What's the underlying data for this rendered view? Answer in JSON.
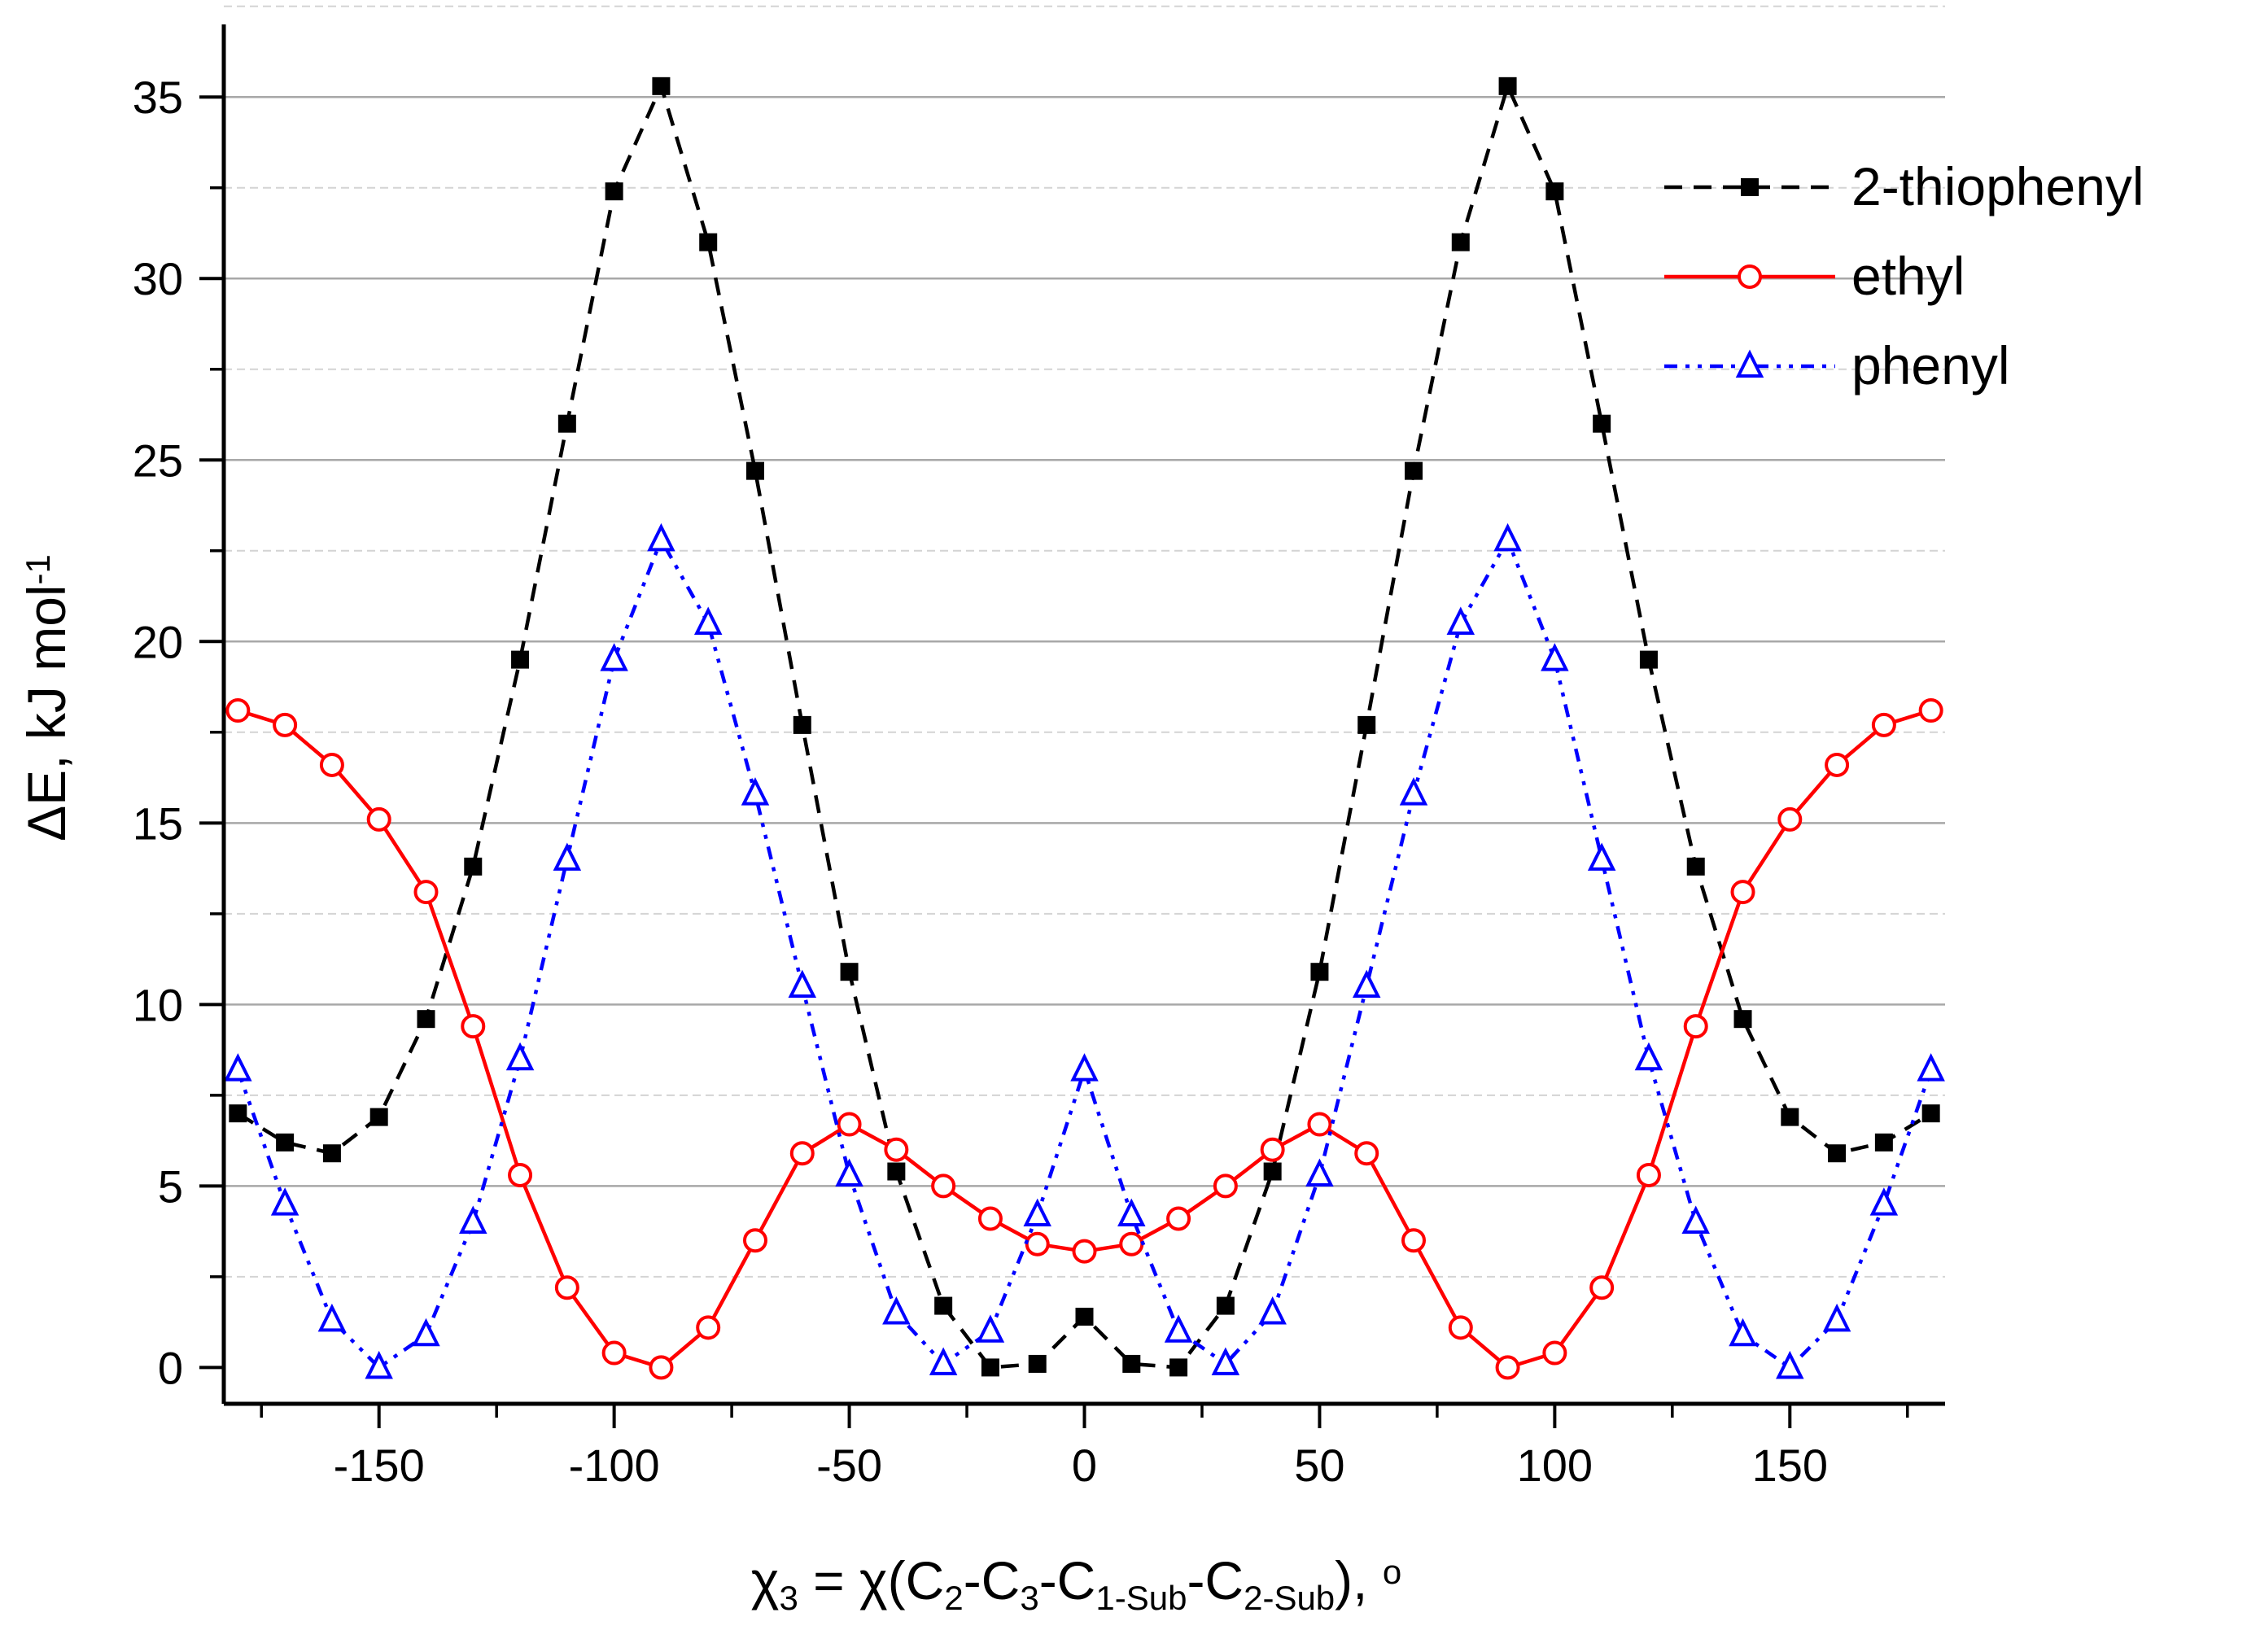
{
  "chart_data": {
    "type": "line",
    "title": "",
    "xlabel": {
      "parts": [
        {
          "text": "χ",
          "style": "normal"
        },
        {
          "text": "3",
          "style": "sub"
        },
        {
          "text": " = χ(C",
          "style": "normal"
        },
        {
          "text": "2",
          "style": "sub"
        },
        {
          "text": "-C",
          "style": "normal"
        },
        {
          "text": "3",
          "style": "sub"
        },
        {
          "text": "-C",
          "style": "normal"
        },
        {
          "text": "1-Sub",
          "style": "sub"
        },
        {
          "text": "-C",
          "style": "normal"
        },
        {
          "text": "2-Sub",
          "style": "sub"
        },
        {
          "text": "), ",
          "style": "normal"
        },
        {
          "text": "o",
          "style": "sup"
        }
      ]
    },
    "ylabel": {
      "parts": [
        {
          "text": "ΔE, kJ mol",
          "style": "normal"
        },
        {
          "text": "-1",
          "style": "sup"
        }
      ]
    },
    "xlim": [
      -183,
      183
    ],
    "ylim": [
      -1,
      37
    ],
    "xticks": [
      -150,
      -100,
      -50,
      0,
      50,
      100,
      150
    ],
    "xtick_labels": [
      "-150",
      "-100",
      "-50",
      "0",
      "50",
      "100",
      "150"
    ],
    "yticks": [
      0,
      5,
      10,
      15,
      20,
      25,
      30,
      35
    ],
    "ytick_labels": [
      "0",
      "5",
      "10",
      "15",
      "20",
      "25",
      "30",
      "35"
    ],
    "grid": true,
    "legend_position": "top-right",
    "x": [
      -180,
      -170,
      -160,
      -150,
      -140,
      -130,
      -120,
      -110,
      -100,
      -90,
      -80,
      -70,
      -60,
      -50,
      -40,
      -30,
      -20,
      -10,
      0,
      10,
      20,
      30,
      40,
      50,
      60,
      70,
      80,
      90,
      100,
      110,
      120,
      130,
      140,
      150,
      160,
      170,
      180
    ],
    "series": [
      {
        "name": "2-thiophenyl",
        "color": "#000000",
        "line_style": "dash",
        "marker": "square",
        "values": [
          7.0,
          6.2,
          5.9,
          6.9,
          9.6,
          13.8,
          19.5,
          26.0,
          32.4,
          35.3,
          31.0,
          24.7,
          17.7,
          10.9,
          5.4,
          1.7,
          0.0,
          0.1,
          1.4,
          0.1,
          0.0,
          1.7,
          5.4,
          10.9,
          17.7,
          24.7,
          31.0,
          35.3,
          32.4,
          26.0,
          19.5,
          13.8,
          9.6,
          6.9,
          5.9,
          6.2,
          7.0
        ]
      },
      {
        "name": "ethyl",
        "color": "#ff0000",
        "line_style": "solid",
        "marker": "open-circle",
        "values": [
          18.1,
          17.7,
          16.6,
          15.1,
          13.1,
          9.4,
          5.3,
          2.2,
          0.4,
          0.0,
          1.1,
          3.5,
          5.9,
          6.7,
          6.0,
          5.0,
          4.1,
          3.4,
          3.2,
          3.4,
          4.1,
          5.0,
          6.0,
          6.7,
          5.9,
          3.5,
          1.1,
          0.0,
          0.4,
          2.2,
          5.3,
          9.4,
          13.1,
          15.1,
          16.6,
          17.7,
          18.1
        ]
      },
      {
        "name": "phenyl",
        "color": "#0000ff",
        "line_style": "dash-dot-dot",
        "marker": "open-triangle",
        "values": [
          8.2,
          4.5,
          1.3,
          0.0,
          0.9,
          4.0,
          8.5,
          14.0,
          19.5,
          22.8,
          20.5,
          15.8,
          10.5,
          5.3,
          1.5,
          0.1,
          1.0,
          4.2,
          8.2,
          4.2,
          1.0,
          0.1,
          1.5,
          5.3,
          10.5,
          15.8,
          20.5,
          22.8,
          19.5,
          14.0,
          8.5,
          4.0,
          0.9,
          0.0,
          1.3,
          4.5,
          8.2
        ]
      }
    ]
  }
}
